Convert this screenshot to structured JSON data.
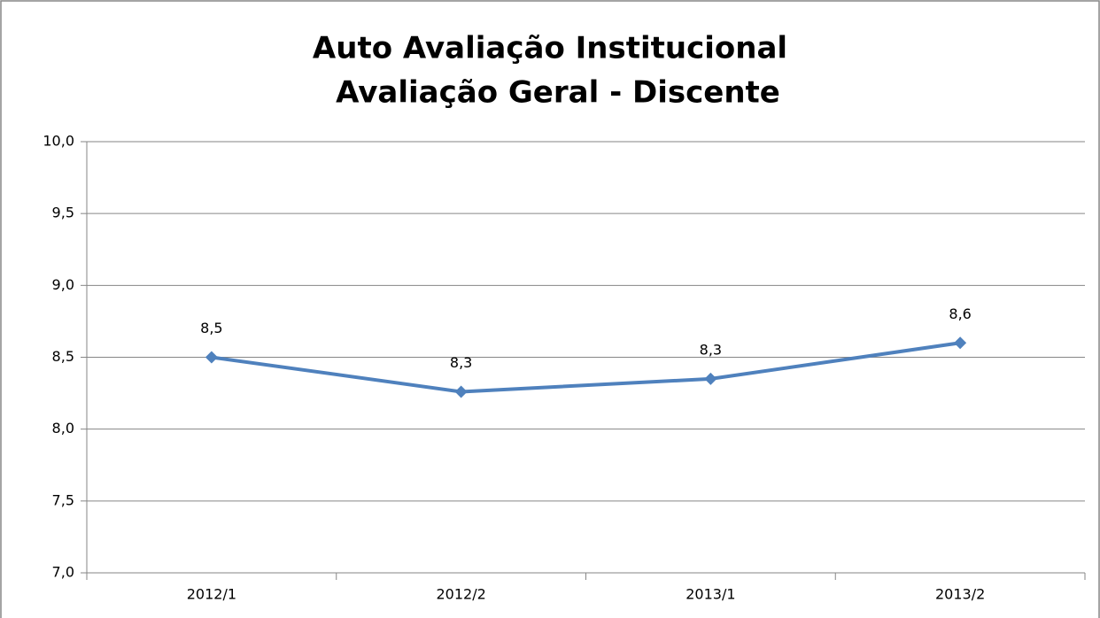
{
  "chart_data": {
    "type": "line",
    "title": [
      "Auto Avaliação Institucional",
      "Avaliação Geral - Discente"
    ],
    "categories": [
      "2012/1",
      "2012/2",
      "2013/1",
      "2013/2"
    ],
    "series": [
      {
        "name": "Avaliação Geral",
        "color": "#4f81bd",
        "values": [
          8.5,
          8.26,
          8.35,
          8.6
        ],
        "value_labels": [
          "8,5",
          "8,3",
          "8,3",
          "8,6"
        ]
      }
    ],
    "ylim": [
      7,
      10
    ],
    "yticks": [
      {
        "value": 7,
        "label": "7,0"
      },
      {
        "value": 7.5,
        "label": "7,5"
      },
      {
        "value": 8,
        "label": "8,0"
      },
      {
        "value": 8.5,
        "label": "8,5"
      },
      {
        "value": 9,
        "label": "9,0"
      },
      {
        "value": 9.5,
        "label": "9,5"
      },
      {
        "value": 10,
        "label": "10,0"
      }
    ],
    "grid": true
  }
}
